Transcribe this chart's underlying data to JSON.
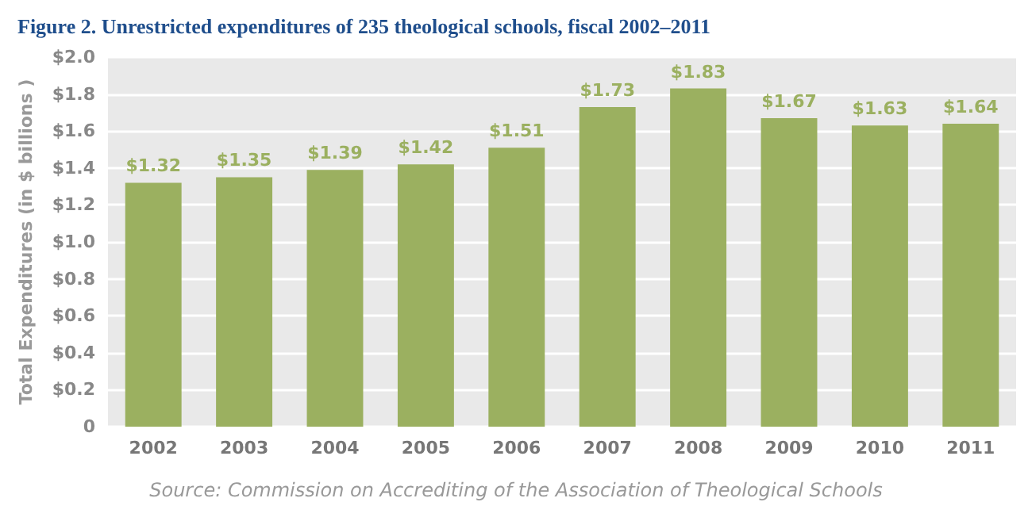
{
  "chart_data": {
    "type": "bar",
    "title": "Figure 2. Unrestricted expenditures of 235 theological schools, fiscal 2002–2011",
    "ylabel": "Total Expenditures (in $ billions )",
    "categories": [
      "2002",
      "2003",
      "2004",
      "2005",
      "2006",
      "2007",
      "2008",
      "2009",
      "2010",
      "2011"
    ],
    "values": [
      1.32,
      1.35,
      1.39,
      1.42,
      1.51,
      1.73,
      1.83,
      1.67,
      1.63,
      1.64
    ],
    "value_labels": [
      "$1.32",
      "$1.35",
      "$1.39",
      "$1.42",
      "$1.51",
      "$1.73",
      "$1.83",
      "$1.67",
      "$1.63",
      "$1.64"
    ],
    "color": "#9bb060",
    "ylim": [
      0,
      2.0
    ],
    "yticks": [
      {
        "value": 0,
        "label": "0"
      },
      {
        "value": 0.2,
        "label": "$0.2"
      },
      {
        "value": 0.4,
        "label": "$0.4"
      },
      {
        "value": 0.6,
        "label": "$0.6"
      },
      {
        "value": 0.8,
        "label": "$0.8"
      },
      {
        "value": 1.0,
        "label": "$1.0"
      },
      {
        "value": 1.2,
        "label": "$1.2"
      },
      {
        "value": 1.4,
        "label": "$1.4"
      },
      {
        "value": 1.6,
        "label": "$1.6"
      },
      {
        "value": 1.8,
        "label": "$1.8"
      },
      {
        "value": 2.0,
        "label": "$2.0"
      }
    ],
    "grid": true,
    "annotations": [
      "Source: Commission on Accrediting of the Association of Theological Schools"
    ]
  }
}
